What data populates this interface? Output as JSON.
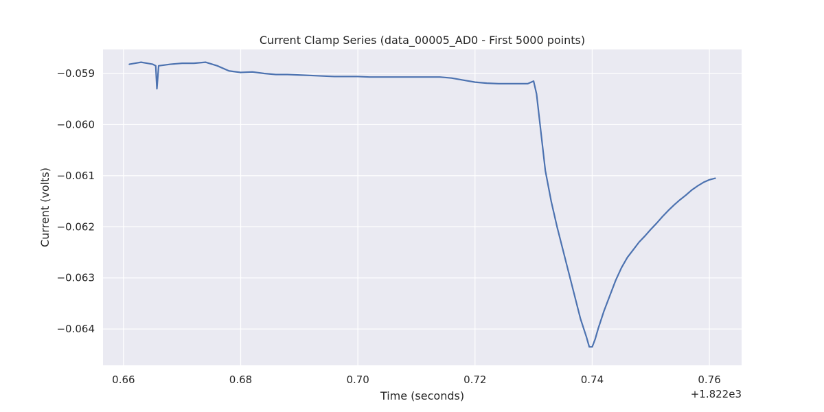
{
  "chart_data": {
    "type": "line",
    "title": "Current Clamp Series (data_00005_AD0 - First 5000 points)",
    "xlabel": "Time (seconds)",
    "ylabel": "Current (volts)",
    "x_offset_label": "+1.822e3",
    "xlim": [
      0.6565,
      0.7655
    ],
    "ylim": [
      -0.06471,
      -0.05853
    ],
    "x_ticks": [
      0.66,
      0.68,
      0.7,
      0.72,
      0.74,
      0.76
    ],
    "x_tick_labels": [
      "0.66",
      "0.68",
      "0.70",
      "0.72",
      "0.74",
      "0.76"
    ],
    "y_ticks": [
      -0.059,
      -0.06,
      -0.061,
      -0.062,
      -0.063,
      -0.064
    ],
    "y_tick_labels": [
      "−0.059",
      "−0.060",
      "−0.061",
      "−0.062",
      "−0.063",
      "−0.064"
    ],
    "grid": true,
    "colors": {
      "background": "#eaeaf2",
      "grid": "#ffffff",
      "line": "#4c72b0"
    },
    "series": [
      {
        "x": [
          0.661,
          0.662,
          0.663,
          0.664,
          0.665,
          0.6655,
          0.6657,
          0.666,
          0.668,
          0.67,
          0.672,
          0.674,
          0.676,
          0.678,
          0.68,
          0.682,
          0.684,
          0.686,
          0.688,
          0.69,
          0.692,
          0.694,
          0.696,
          0.698,
          0.7,
          0.702,
          0.704,
          0.706,
          0.708,
          0.71,
          0.712,
          0.714,
          0.716,
          0.718,
          0.72,
          0.722,
          0.724,
          0.726,
          0.728,
          0.729,
          0.73,
          0.7305,
          0.731,
          0.7315,
          0.732,
          0.733,
          0.734,
          0.735,
          0.736,
          0.737,
          0.738,
          0.739,
          0.7395,
          0.74,
          0.7405,
          0.741,
          0.742,
          0.743,
          0.744,
          0.745,
          0.746,
          0.747,
          0.748,
          0.749,
          0.75,
          0.751,
          0.752,
          0.753,
          0.754,
          0.755,
          0.756,
          0.757,
          0.758,
          0.759,
          0.76,
          0.761
        ],
        "y": [
          -0.05882,
          -0.0588,
          -0.05878,
          -0.0588,
          -0.05882,
          -0.05885,
          -0.0593,
          -0.05885,
          -0.05882,
          -0.0588,
          -0.0588,
          -0.05878,
          -0.05885,
          -0.05895,
          -0.05898,
          -0.05897,
          -0.059,
          -0.05902,
          -0.05902,
          -0.05903,
          -0.05904,
          -0.05905,
          -0.05906,
          -0.05906,
          -0.05906,
          -0.05907,
          -0.05907,
          -0.05907,
          -0.05907,
          -0.05907,
          -0.05907,
          -0.05907,
          -0.05909,
          -0.05913,
          -0.05917,
          -0.05919,
          -0.0592,
          -0.0592,
          -0.0592,
          -0.0592,
          -0.05915,
          -0.0594,
          -0.0599,
          -0.0604,
          -0.0609,
          -0.0615,
          -0.062,
          -0.06245,
          -0.0629,
          -0.06335,
          -0.0638,
          -0.06415,
          -0.06435,
          -0.06435,
          -0.0642,
          -0.064,
          -0.06365,
          -0.06335,
          -0.06305,
          -0.0628,
          -0.0626,
          -0.06245,
          -0.0623,
          -0.06218,
          -0.06205,
          -0.06193,
          -0.0618,
          -0.06168,
          -0.06157,
          -0.06147,
          -0.06138,
          -0.06128,
          -0.0612,
          -0.06113,
          -0.06108,
          -0.06105
        ]
      }
    ]
  }
}
